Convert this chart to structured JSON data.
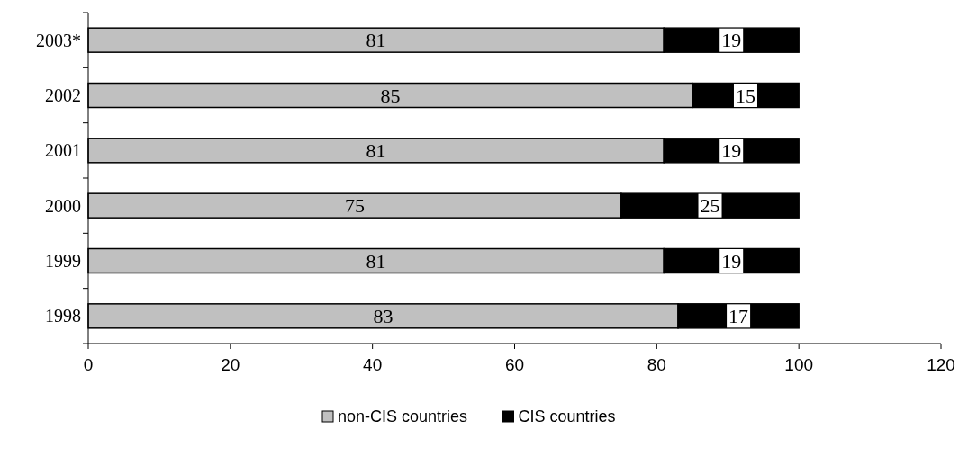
{
  "chart_data": {
    "type": "bar",
    "orientation": "horizontal",
    "stacked": true,
    "categories": [
      "2003*",
      "2002",
      "2001",
      "2000",
      "1999",
      "1998"
    ],
    "series": [
      {
        "name": "non-CIS countries",
        "color": "#c0c0c0",
        "values": [
          81,
          85,
          81,
          75,
          81,
          83
        ]
      },
      {
        "name": "CIS countries",
        "color": "#000000",
        "values": [
          19,
          15,
          19,
          25,
          19,
          17
        ]
      }
    ],
    "xlim": [
      0,
      120
    ],
    "xticks": [
      0,
      20,
      40,
      60,
      80,
      100,
      120
    ],
    "data_labels": true,
    "grid": false,
    "legend": "bottom"
  }
}
